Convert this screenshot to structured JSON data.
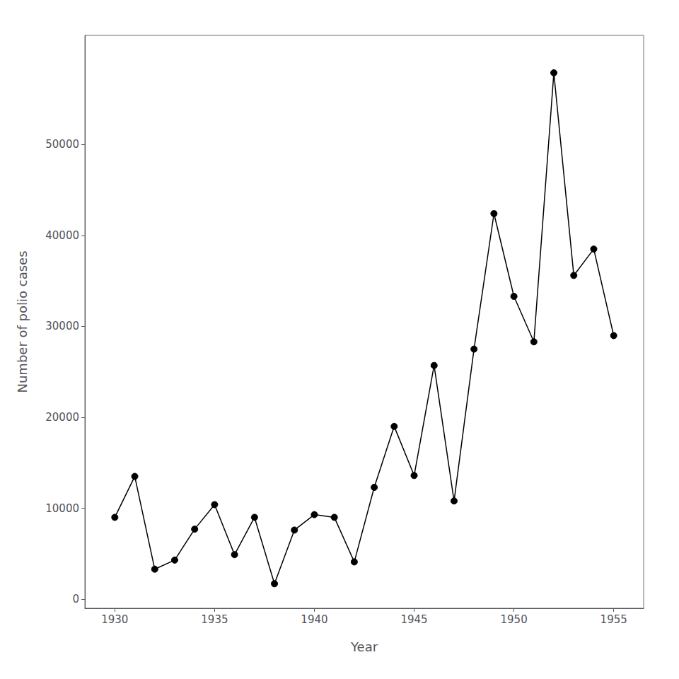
{
  "chart_data": {
    "type": "line",
    "x": [
      1930,
      1931,
      1932,
      1933,
      1934,
      1935,
      1936,
      1937,
      1938,
      1939,
      1940,
      1941,
      1942,
      1943,
      1944,
      1945,
      1946,
      1947,
      1948,
      1949,
      1950,
      1951,
      1952,
      1953,
      1954,
      1955
    ],
    "values": [
      9000,
      13500,
      3300,
      4300,
      7700,
      10400,
      4900,
      9000,
      1700,
      7600,
      9300,
      9000,
      4100,
      12300,
      19000,
      13600,
      25700,
      10800,
      27500,
      42400,
      33300,
      28300,
      57879,
      35600,
      38500,
      28985
    ],
    "xlabel": "Year",
    "ylabel": "Number of polio cases",
    "xlim": [
      1928.5,
      1956.5
    ],
    "ylim": [
      -1000,
      62000
    ],
    "xticks": [
      1930,
      1935,
      1940,
      1945,
      1950,
      1955
    ],
    "yticks": [
      0,
      10000,
      20000,
      30000,
      40000,
      50000
    ],
    "color": "#000000",
    "marker": "circle",
    "grid": false
  }
}
